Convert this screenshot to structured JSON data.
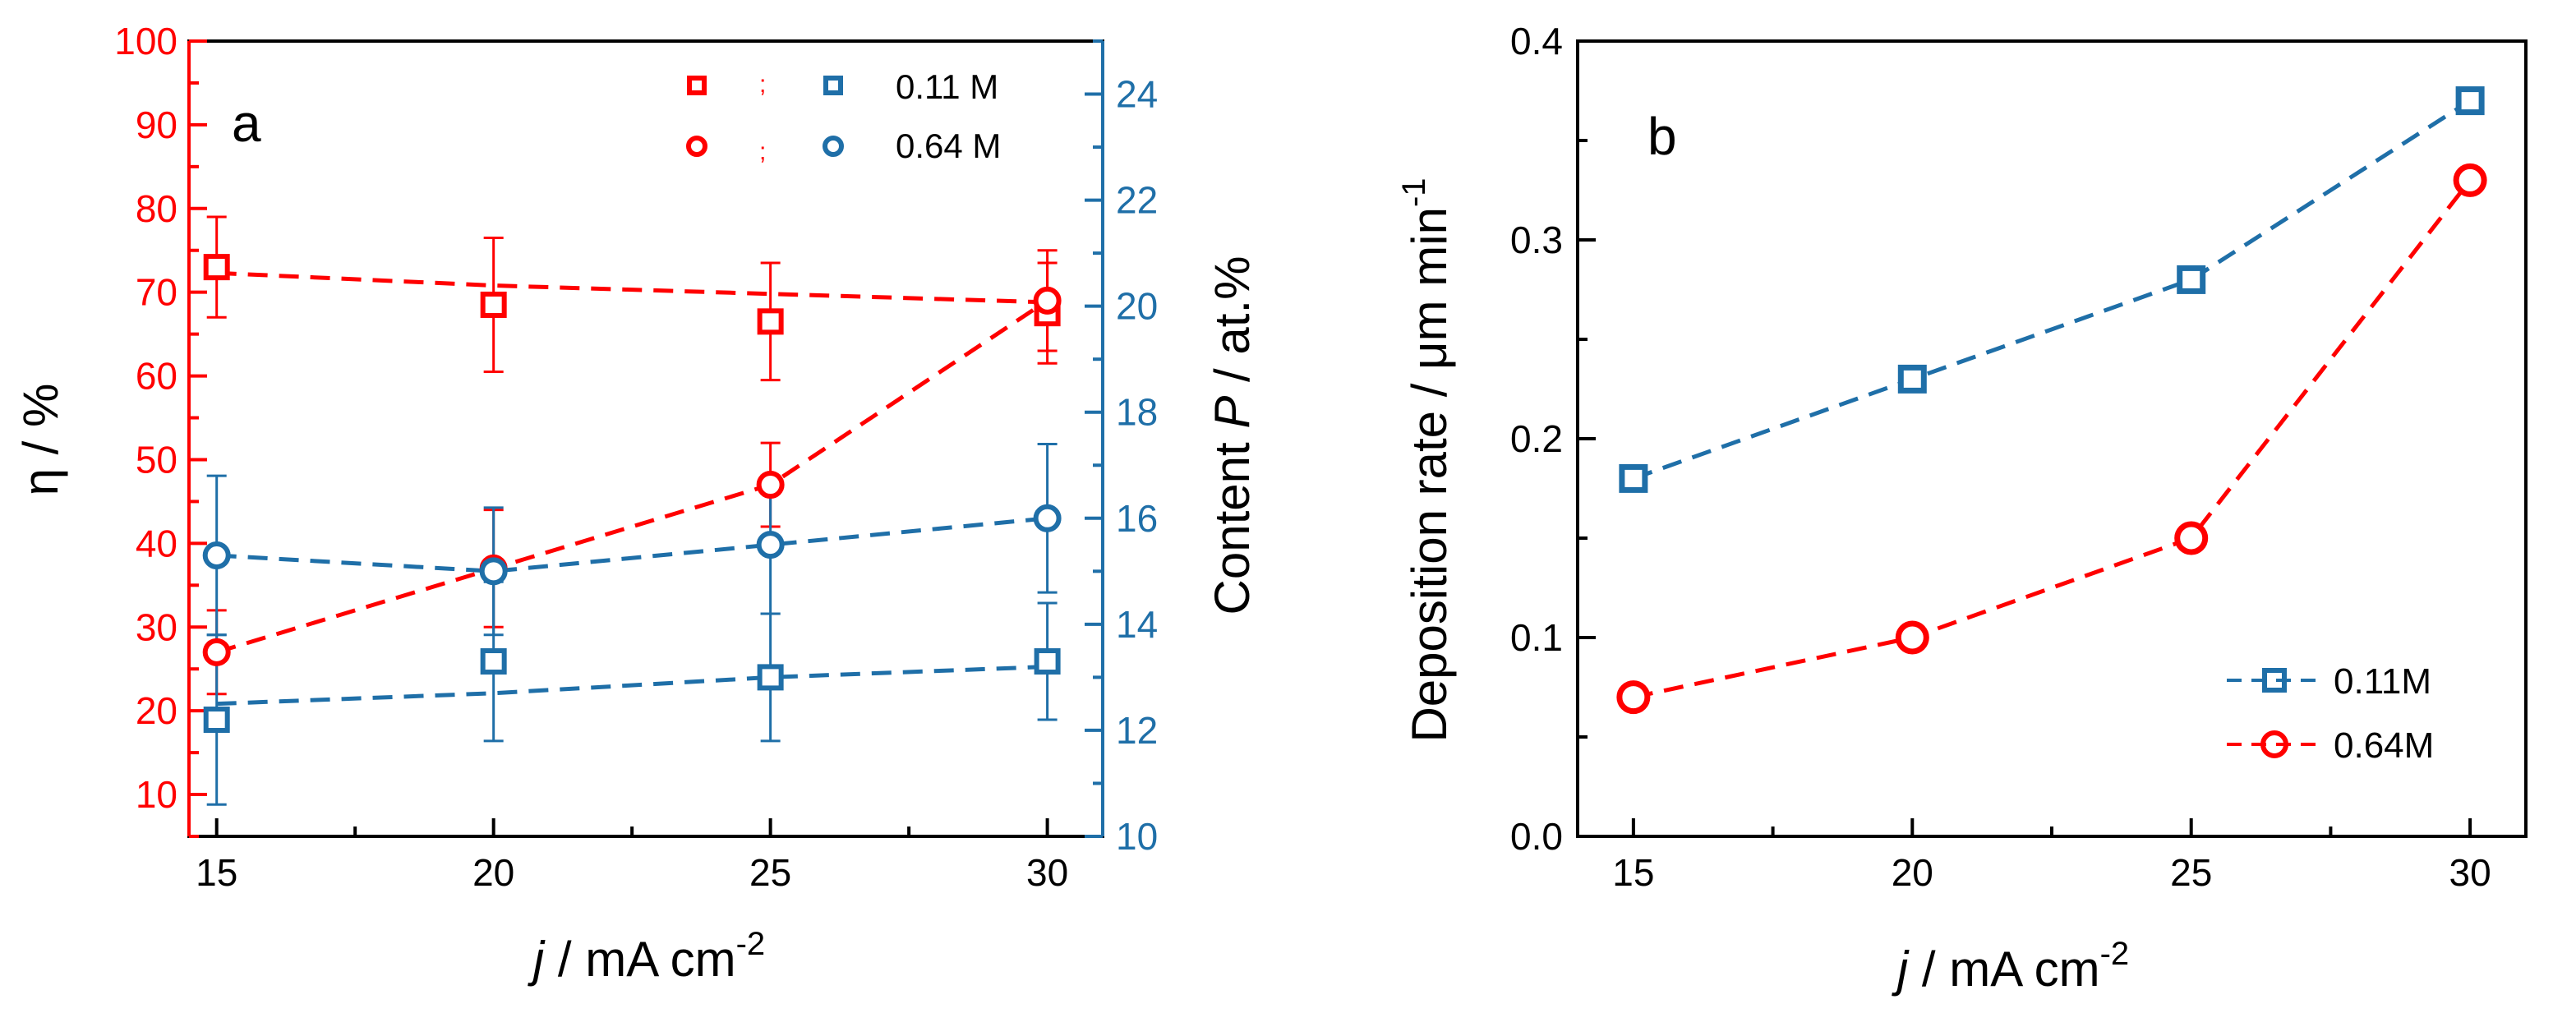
{
  "colors": {
    "red": "#ff0000",
    "blue": "#1f6fa8",
    "black": "#000000"
  },
  "chart_data": [
    {
      "panel": "a",
      "type": "line",
      "x": [
        15,
        20,
        25,
        30
      ],
      "xlim": [
        14.5,
        31
      ],
      "xticks": [
        15,
        20,
        25,
        30
      ],
      "xlabel": {
        "italic": "j",
        "text": " / mA cm",
        "sup": "-2"
      },
      "y_left": {
        "label": "η / %",
        "lim": [
          5,
          100
        ],
        "ticks": [
          10,
          20,
          30,
          40,
          50,
          60,
          70,
          80,
          90,
          100
        ],
        "color": "red"
      },
      "y_right": {
        "label_prefix": "Content ",
        "label_italic": "P",
        "label_suffix": " / at.%",
        "lim": [
          10,
          25
        ],
        "ticks": [
          10,
          12,
          14,
          16,
          18,
          20,
          22,
          24
        ],
        "color": "blue"
      },
      "series": [
        {
          "name": "0.11 M",
          "quantity": "η",
          "axis": "left",
          "color": "red",
          "marker": "square",
          "values": [
            73,
            68.5,
            66.5,
            67.5
          ],
          "err": [
            6,
            8,
            7,
            6
          ],
          "fit": [
            72.3,
            70.8,
            69.8,
            68.8
          ]
        },
        {
          "name": "0.64 M",
          "quantity": "η",
          "axis": "left",
          "color": "red",
          "marker": "circle",
          "values": [
            27,
            37,
            47,
            69
          ],
          "err": [
            5,
            7,
            5,
            6
          ],
          "fit": [
            27,
            37,
            47,
            69
          ]
        },
        {
          "name": "0.11 M",
          "quantity": "P",
          "axis": "right",
          "color": "blue",
          "marker": "square",
          "values": [
            12.2,
            13.3,
            13,
            13.3
          ],
          "err": [
            1.6,
            1.5,
            1.2,
            1.1
          ],
          "fit": [
            12.5,
            12.7,
            13,
            13.2
          ]
        },
        {
          "name": "0.64 M",
          "quantity": "P",
          "axis": "right",
          "color": "blue",
          "marker": "circle",
          "values": [
            15.3,
            15,
            15.5,
            16
          ],
          "err": [
            1.5,
            1.2,
            1.3,
            1.4
          ],
          "fit": [
            15.3,
            15,
            15.5,
            16
          ]
        }
      ],
      "legend": [
        {
          "label": "0.11 M",
          "marker": "square"
        },
        {
          "label": "0.64 M",
          "marker": "circle"
        }
      ],
      "legend_position": "top-right"
    },
    {
      "panel": "b",
      "type": "line",
      "x": [
        15,
        20,
        25,
        30
      ],
      "xlim": [
        14,
        31
      ],
      "xticks": [
        15,
        20,
        25,
        30
      ],
      "xlabel": {
        "italic": "j",
        "text": " / mA cm",
        "sup": "-2"
      },
      "ylabel": {
        "text": "Deposition rate / μm min",
        "sup": "-1"
      },
      "ylim": [
        0,
        0.4
      ],
      "yticks": [
        "0.0",
        "0.1",
        "0.2",
        "0.3",
        "0.4"
      ],
      "series": [
        {
          "name": "0.11M",
          "color": "blue",
          "marker": "square",
          "values": [
            0.18,
            0.23,
            0.28,
            0.37
          ]
        },
        {
          "name": "0.64M",
          "color": "red",
          "marker": "circle",
          "values": [
            0.07,
            0.1,
            0.15,
            0.33
          ]
        }
      ],
      "legend_position": "bottom-right"
    }
  ]
}
